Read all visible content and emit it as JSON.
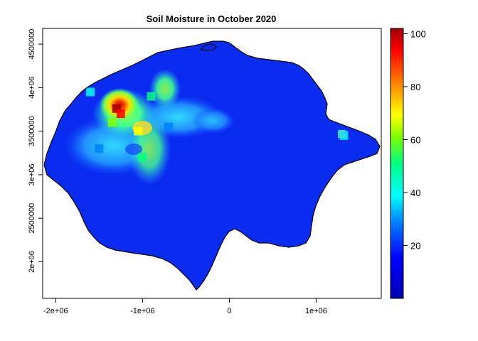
{
  "title": "Soil Moisture in October 2020",
  "map": {
    "x_range": [
      -2150000,
      1750000
    ],
    "y_range": [
      1580000,
      4680000
    ],
    "x_ticks": [
      {
        "value": -2000000,
        "label": "-2e+06"
      },
      {
        "value": -1000000,
        "label": "-1e+06"
      },
      {
        "value": 0,
        "label": "0"
      },
      {
        "value": 1000000,
        "label": "1e+06"
      }
    ],
    "y_ticks": [
      {
        "value": 2000000,
        "label": "2e+06"
      },
      {
        "value": 2500000,
        "label": "2500000"
      },
      {
        "value": 3000000,
        "label": "3e+06"
      },
      {
        "value": 3500000,
        "label": "3500000"
      },
      {
        "value": 4000000,
        "label": "4e+06"
      },
      {
        "value": 4500000,
        "label": "4500000"
      }
    ],
    "background_color": "#0a2cf0"
  },
  "legend": {
    "min": 0,
    "max": 102,
    "ticks": [
      {
        "value": 20,
        "label": "20"
      },
      {
        "value": 40,
        "label": "40"
      },
      {
        "value": 60,
        "label": "60"
      },
      {
        "value": 80,
        "label": "80"
      },
      {
        "value": 100,
        "label": "100"
      }
    ],
    "colors": [
      "#0000b0",
      "#0000ff",
      "#0080ff",
      "#00ffff",
      "#00ff80",
      "#80ff00",
      "#ffff00",
      "#ff8000",
      "#ff0000",
      "#a00000"
    ]
  },
  "highlights": [
    {
      "x": -1300000,
      "y": 3760000,
      "value": 98
    },
    {
      "x": -1250000,
      "y": 3700000,
      "value": 85
    },
    {
      "x": -1050000,
      "y": 3500000,
      "value": 72
    },
    {
      "x": -1350000,
      "y": 3600000,
      "value": 60
    },
    {
      "x": -900000,
      "y": 3900000,
      "value": 50
    },
    {
      "x": -1000000,
      "y": 3200000,
      "value": 45
    },
    {
      "x": -1500000,
      "y": 3300000,
      "value": 28
    },
    {
      "x": -700000,
      "y": 3550000,
      "value": 25
    },
    {
      "x": 1320000,
      "y": 3450000,
      "value": 38
    },
    {
      "x": -1600000,
      "y": 3950000,
      "value": 35
    }
  ]
}
